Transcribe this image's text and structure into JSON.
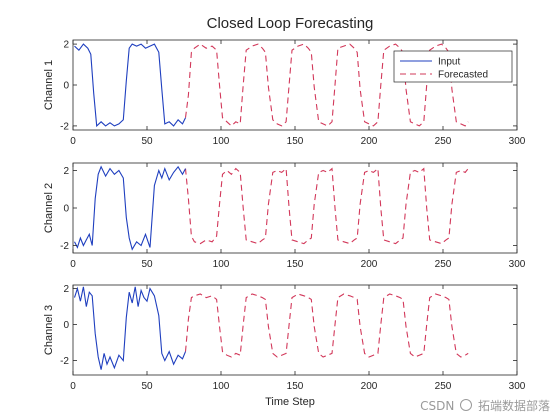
{
  "chart_data": {
    "type": "line",
    "title": "Closed Loop Forecasting",
    "xlabel": "Time Step",
    "xlim": [
      0,
      300
    ],
    "xticks": [
      0,
      50,
      100,
      150,
      200,
      250,
      300
    ],
    "legend_placement": "top-right",
    "legend": [
      "Input",
      "Forecasted"
    ],
    "colors": {
      "input": "#1f3fbf",
      "forecasted": "#d2385a"
    },
    "panels": [
      {
        "ylabel": "Channel 1",
        "ylim": [
          -2.2,
          2.2
        ],
        "yticks": [
          -2,
          0,
          2
        ],
        "input": {
          "x": [
            1,
            4,
            7,
            10,
            12,
            14,
            16,
            19,
            22,
            25,
            28,
            31,
            34,
            36,
            38,
            40,
            43,
            46,
            49,
            52,
            55,
            58,
            60,
            62,
            65,
            68,
            71,
            74,
            76
          ],
          "y": [
            1.9,
            1.7,
            2.0,
            1.8,
            1.5,
            -0.4,
            -2.0,
            -1.8,
            -2.0,
            -1.85,
            -2.0,
            -1.9,
            -1.7,
            0.2,
            1.8,
            2.0,
            1.9,
            2.0,
            1.8,
            1.9,
            2.0,
            1.6,
            -0.2,
            -1.9,
            -1.8,
            -2.0,
            -1.7,
            -1.9,
            -1.6
          ]
        },
        "forecast": {
          "x": [
            76,
            78,
            80,
            82,
            86,
            90,
            94,
            97,
            99,
            101,
            104,
            107,
            110,
            113,
            115,
            117,
            121,
            125,
            128,
            130,
            132,
            135,
            138,
            141,
            144,
            146,
            148,
            152,
            156,
            159,
            161,
            163,
            166,
            169,
            172,
            175,
            177,
            179,
            183,
            187,
            190,
            192,
            194,
            197,
            200,
            203,
            206,
            208,
            210,
            214,
            218,
            221,
            223,
            225,
            228,
            231,
            234,
            237,
            239,
            241,
            245,
            249,
            252,
            254,
            256,
            259,
            262,
            265,
            267
          ],
          "y": [
            -1.6,
            -0.5,
            1.6,
            1.8,
            2.0,
            1.8,
            1.9,
            1.7,
            0.0,
            -1.6,
            -1.8,
            -2.0,
            -1.8,
            -1.9,
            0.0,
            1.7,
            1.9,
            2.0,
            1.8,
            1.6,
            -0.1,
            -1.7,
            -1.9,
            -2.0,
            -1.8,
            0.0,
            1.7,
            1.9,
            2.0,
            1.8,
            1.6,
            -0.1,
            -1.8,
            -1.9,
            -2.0,
            -1.8,
            0.0,
            1.8,
            1.9,
            2.0,
            1.8,
            1.6,
            -0.2,
            -1.8,
            -1.9,
            -2.0,
            -1.8,
            0.0,
            1.7,
            1.9,
            2.0,
            1.8,
            1.6,
            -0.2,
            -1.8,
            -1.9,
            -2.0,
            -1.8,
            0.0,
            1.7,
            1.9,
            2.0,
            1.8,
            1.6,
            -0.2,
            -1.8,
            -1.9,
            -2.0,
            -1.8
          ]
        }
      },
      {
        "ylabel": "Channel 2",
        "ylim": [
          -2.4,
          2.4
        ],
        "yticks": [
          -2,
          0,
          2
        ],
        "input": {
          "x": [
            1,
            3,
            5,
            7,
            9,
            11,
            13,
            15,
            17,
            19,
            22,
            25,
            28,
            31,
            34,
            36,
            38,
            40,
            43,
            46,
            49,
            52,
            55,
            58,
            60,
            62,
            65,
            68,
            71,
            74,
            76
          ],
          "y": [
            -1.8,
            -2.1,
            -1.6,
            -2.0,
            -1.7,
            -1.4,
            -2.0,
            0.5,
            1.8,
            2.2,
            1.7,
            2.1,
            1.8,
            2.0,
            1.6,
            -0.5,
            -1.6,
            -2.2,
            -1.8,
            -2.0,
            -1.4,
            -2.1,
            1.2,
            2.0,
            1.6,
            2.1,
            1.5,
            1.9,
            2.2,
            1.8,
            2.1
          ]
        },
        "forecast": {
          "x": [
            76,
            78,
            80,
            82,
            86,
            90,
            94,
            97,
            99,
            101,
            104,
            107,
            110,
            113,
            115,
            117,
            121,
            125,
            128,
            130,
            132,
            135,
            138,
            141,
            144,
            146,
            148,
            152,
            156,
            159,
            161,
            163,
            166,
            169,
            172,
            175,
            177,
            179,
            183,
            187,
            190,
            192,
            194,
            197,
            200,
            203,
            206,
            208,
            210,
            214,
            218,
            221,
            223,
            225,
            228,
            231,
            234,
            237,
            239,
            241,
            245,
            249,
            252,
            254,
            256,
            259,
            262,
            265,
            267
          ],
          "y": [
            2.1,
            0.5,
            -1.5,
            -1.8,
            -1.9,
            -1.7,
            -1.8,
            -1.5,
            0.2,
            1.8,
            2.0,
            1.8,
            2.1,
            1.9,
            0.0,
            -1.7,
            -1.8,
            -1.9,
            -1.7,
            -1.6,
            0.2,
            1.9,
            2.0,
            1.9,
            2.1,
            0.0,
            -1.7,
            -1.8,
            -1.9,
            -1.7,
            -1.6,
            0.2,
            1.9,
            2.0,
            1.9,
            2.1,
            0.0,
            -1.7,
            -1.8,
            -1.9,
            -1.7,
            -1.6,
            0.2,
            1.9,
            2.0,
            1.9,
            2.1,
            0.0,
            -1.7,
            -1.8,
            -1.9,
            -1.7,
            -1.6,
            0.2,
            1.9,
            2.0,
            1.9,
            2.1,
            0.0,
            -1.7,
            -1.8,
            -1.9,
            -1.7,
            -1.6,
            0.2,
            1.9,
            2.0,
            1.9,
            2.1
          ]
        }
      },
      {
        "ylabel": "Channel 3",
        "ylim": [
          -2.8,
          2.2
        ],
        "yticks": [
          -2,
          0,
          2
        ],
        "input": {
          "x": [
            1,
            3,
            5,
            7,
            9,
            11,
            13,
            15,
            17,
            19,
            21,
            23,
            25,
            28,
            31,
            34,
            36,
            38,
            40,
            42,
            44,
            46,
            48,
            50,
            52,
            55,
            58,
            60,
            62,
            65,
            68,
            71,
            74,
            76
          ],
          "y": [
            1.5,
            2.0,
            1.3,
            2.1,
            1.0,
            1.8,
            1.6,
            -0.5,
            -1.8,
            -2.5,
            -1.6,
            -2.2,
            -1.8,
            -2.4,
            -1.7,
            -2.0,
            0.4,
            1.8,
            1.2,
            2.1,
            1.0,
            1.9,
            1.5,
            1.3,
            2.0,
            1.6,
            0.5,
            -1.6,
            -2.0,
            -1.5,
            -2.2,
            -1.7,
            -1.9,
            -1.5
          ]
        },
        "forecast": {
          "x": [
            76,
            78,
            80,
            82,
            86,
            90,
            94,
            97,
            99,
            101,
            104,
            107,
            110,
            113,
            115,
            117,
            121,
            125,
            128,
            130,
            132,
            135,
            138,
            141,
            144,
            146,
            148,
            152,
            156,
            159,
            161,
            163,
            166,
            169,
            172,
            175,
            177,
            179,
            183,
            187,
            190,
            192,
            194,
            197,
            200,
            203,
            206,
            208,
            210,
            214,
            218,
            221,
            223,
            225,
            228,
            231,
            234,
            237,
            239,
            241,
            245,
            249,
            252,
            254,
            256,
            259,
            262,
            265,
            267
          ],
          "y": [
            -1.5,
            0.3,
            1.5,
            1.6,
            1.7,
            1.5,
            1.6,
            1.4,
            -0.1,
            -1.5,
            -1.7,
            -1.8,
            -1.6,
            -1.7,
            0.0,
            1.5,
            1.7,
            1.6,
            1.5,
            1.4,
            -0.1,
            -1.6,
            -1.8,
            -1.7,
            -1.6,
            0.0,
            1.5,
            1.7,
            1.6,
            1.5,
            1.4,
            -0.1,
            -1.6,
            -1.8,
            -1.7,
            -1.6,
            0.0,
            1.5,
            1.7,
            1.6,
            1.5,
            1.4,
            -0.1,
            -1.6,
            -1.8,
            -1.7,
            -1.6,
            0.0,
            1.5,
            1.7,
            1.6,
            1.5,
            1.4,
            -0.1,
            -1.6,
            -1.8,
            -1.7,
            -1.6,
            0.0,
            1.5,
            1.7,
            1.6,
            1.5,
            1.4,
            -0.1,
            -1.6,
            -1.8,
            -1.7,
            -1.6
          ]
        }
      }
    ]
  },
  "watermark": {
    "left": "CSDN",
    "right": "拓端数据部落"
  }
}
